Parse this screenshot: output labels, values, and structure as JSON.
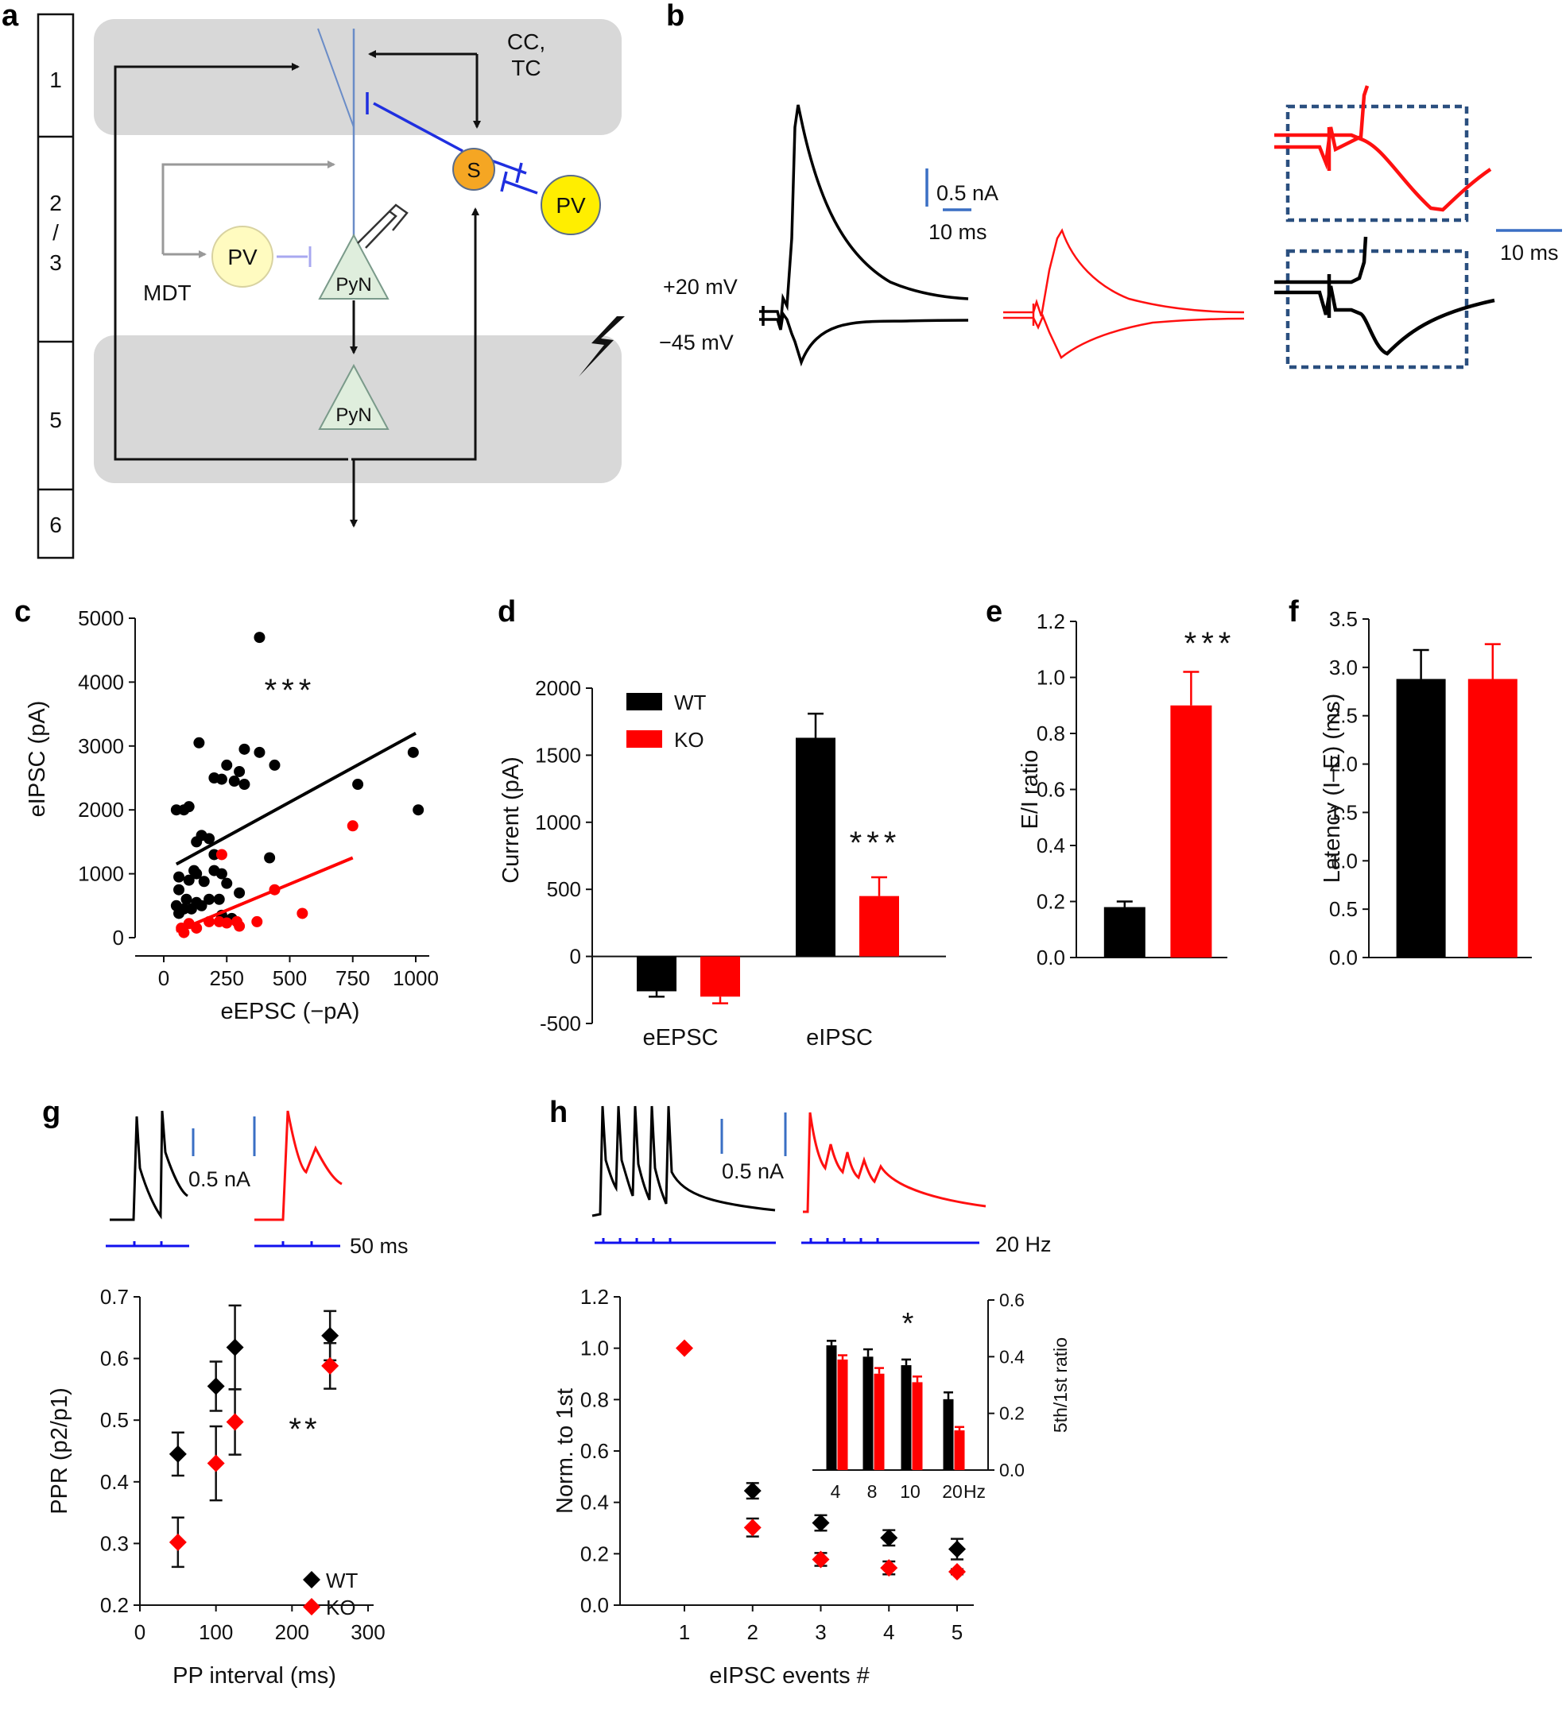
{
  "panels": {
    "a": {
      "label": "a",
      "layers": [
        "1",
        "2",
        "/",
        "3",
        "5",
        "6"
      ],
      "nodes": {
        "s": "S",
        "pv_right": "PV",
        "pv_left": "PV",
        "pyn_upper": "PyN",
        "pyn_lower": "PyN"
      },
      "inputs": {
        "cc": "CC,",
        "tc": "TC",
        "mdt": "MDT"
      },
      "colors": {
        "inhibitory": "#1f2fe0",
        "s_cell": "#f5a623",
        "pv_cell": "#ffee00",
        "pyn": "#dfeedd",
        "layer_shade": "#d8d8d8"
      }
    },
    "b": {
      "label": "b",
      "holding_high": "+20 mV",
      "holding_low": "−45 mV",
      "scale_current": "0.5 nA",
      "scale_time_1": "10 ms",
      "scale_time_2": "10 ms"
    },
    "c": {
      "label": "c"
    },
    "d": {
      "label": "d"
    },
    "e": {
      "label": "e"
    },
    "f": {
      "label": "f"
    },
    "g": {
      "label": "g",
      "scale_current": "0.5 nA",
      "scale_time": "50 ms"
    },
    "h": {
      "label": "h",
      "scale_current": "0.5 nA",
      "stim_rate": "20 Hz"
    }
  },
  "colors": {
    "wt": "#000000",
    "ko": "#ff0000",
    "scale": "#3a6fc4",
    "stim": "#1010ee"
  },
  "chart_data": [
    {
      "panel": "c",
      "type": "scatter",
      "xlabel": "eEPSC (−pA)",
      "ylabel": "eIPSC (pA)",
      "xlim": [
        -100,
        1070
      ],
      "ylim": [
        -150,
        5000
      ],
      "xticks": [
        0,
        250,
        500,
        750,
        1000
      ],
      "yticks": [
        0,
        1000,
        2000,
        3000,
        4000,
        5000
      ],
      "annotation": "***",
      "series": [
        {
          "color": "#000000",
          "points": [
            [
              380,
              4700
            ],
            [
              140,
              3050
            ],
            [
              320,
              2950
            ],
            [
              380,
              2900
            ],
            [
              200,
              2500
            ],
            [
              230,
              2480
            ],
            [
              280,
              2450
            ],
            [
              320,
              2400
            ],
            [
              300,
              2600
            ],
            [
              440,
              2700
            ],
            [
              250,
              2700
            ],
            [
              100,
              2050
            ],
            [
              80,
              2000
            ],
            [
              50,
              2000
            ],
            [
              150,
              1600
            ],
            [
              180,
              1550
            ],
            [
              130,
              1500
            ],
            [
              200,
              1300
            ],
            [
              420,
              1250
            ],
            [
              60,
              950
            ],
            [
              130,
              1000
            ],
            [
              200,
              1050
            ],
            [
              230,
              1000
            ],
            [
              120,
              1050
            ],
            [
              100,
              900
            ],
            [
              160,
              880
            ],
            [
              250,
              850
            ],
            [
              300,
              700
            ],
            [
              60,
              750
            ],
            [
              90,
              600
            ],
            [
              130,
              550
            ],
            [
              150,
              500
            ],
            [
              220,
              600
            ],
            [
              50,
              500
            ],
            [
              180,
              600
            ],
            [
              80,
              450
            ],
            [
              110,
              450
            ],
            [
              60,
              380
            ],
            [
              270,
              300
            ],
            [
              230,
              350
            ],
            [
              770,
              2400
            ],
            [
              990,
              2900
            ],
            [
              1010,
              2000
            ]
          ],
          "fit": [
            [
              50,
              1150
            ],
            [
              1000,
              3200
            ]
          ]
        },
        {
          "color": "#ff0000",
          "points": [
            [
              230,
              1300
            ],
            [
              750,
              1750
            ],
            [
              440,
              750
            ],
            [
              550,
              380
            ],
            [
              370,
              250
            ],
            [
              290,
              250
            ],
            [
              250,
              230
            ],
            [
              220,
              250
            ],
            [
              180,
              250
            ],
            [
              100,
              220
            ],
            [
              70,
              150
            ],
            [
              80,
              80
            ],
            [
              130,
              150
            ],
            [
              300,
              180
            ]
          ],
          "fit": [
            [
              50,
              100
            ],
            [
              750,
              1250
            ]
          ]
        }
      ]
    },
    {
      "panel": "d",
      "type": "bar",
      "ylabel": "Current (pA)",
      "categories": [
        "eEPSC",
        "eIPSC"
      ],
      "ylim": [
        -500,
        2000
      ],
      "yticks": [
        -500,
        0,
        500,
        1000,
        1500,
        2000
      ],
      "series": [
        {
          "name": "WT",
          "color": "#000000",
          "values": [
            -260,
            1630
          ],
          "errors": [
            40,
            180
          ]
        },
        {
          "name": "KO",
          "color": "#ff0000",
          "values": [
            -300,
            450
          ],
          "errors": [
            50,
            140
          ]
        }
      ],
      "annotation": "***",
      "legend": "top-left"
    },
    {
      "panel": "e",
      "type": "bar",
      "ylabel": "E/I ratio",
      "ylim": [
        0,
        1.2
      ],
      "yticks": [
        0.0,
        0.2,
        0.4,
        0.6,
        0.8,
        1.0,
        1.2
      ],
      "values": [
        0.18,
        0.9
      ],
      "errors": [
        0.02,
        0.12
      ],
      "colors": [
        "#000000",
        "#ff0000"
      ],
      "annotation": "***"
    },
    {
      "panel": "f",
      "type": "bar",
      "ylabel": "Latency (I–E) (ms)",
      "ylim": [
        0,
        3.5
      ],
      "yticks": [
        0.0,
        0.5,
        1.0,
        1.5,
        2.0,
        2.5,
        3.0,
        3.5
      ],
      "values": [
        2.88,
        2.88
      ],
      "errors": [
        0.3,
        0.36
      ],
      "colors": [
        "#000000",
        "#ff0000"
      ]
    },
    {
      "panel": "g",
      "type": "scatter",
      "xlabel": "PP interval (ms)",
      "ylabel": "PPR (p2/p1)",
      "xlim": [
        0,
        300
      ],
      "ylim": [
        0.2,
        0.7
      ],
      "xticks": [
        0,
        100,
        200,
        300
      ],
      "yticks": [
        0.2,
        0.3,
        0.4,
        0.5,
        0.6,
        0.7
      ],
      "series": [
        {
          "name": "WT",
          "color": "#000000",
          "x": [
            50,
            100,
            125,
            250
          ],
          "y": [
            0.445,
            0.555,
            0.618,
            0.637
          ],
          "errors": [
            0.035,
            0.04,
            0.068,
            0.04
          ]
        },
        {
          "name": "KO",
          "color": "#ff0000",
          "x": [
            50,
            100,
            125,
            250
          ],
          "y": [
            0.302,
            0.43,
            0.497,
            0.588
          ],
          "errors": [
            0.04,
            0.06,
            0.053,
            0.037
          ]
        }
      ],
      "annotation": "**",
      "legend": "bottom-right"
    },
    {
      "panel": "h",
      "type": "scatter",
      "xlabel": "eIPSC events #",
      "ylabel": "Norm. to 1st",
      "xlim": [
        0.5,
        5.5
      ],
      "ylim": [
        0.0,
        1.2
      ],
      "xticks": [
        1,
        2,
        3,
        4,
        5
      ],
      "yticks": [
        0.0,
        0.2,
        0.4,
        0.6,
        0.8,
        1.0,
        1.2
      ],
      "series": [
        {
          "color": "#000000",
          "x": [
            2,
            3,
            4,
            5
          ],
          "y": [
            0.445,
            0.32,
            0.262,
            0.218
          ],
          "errors": [
            0.03,
            0.03,
            0.03,
            0.04
          ]
        },
        {
          "color": "#ff0000",
          "x": [
            1,
            2,
            3,
            4,
            5
          ],
          "y": [
            1.0,
            0.302,
            0.178,
            0.145,
            0.13
          ],
          "errors": [
            0.0,
            0.035,
            0.025,
            0.025,
            0.01
          ]
        }
      ]
    },
    {
      "panel": "h-inset",
      "type": "bar",
      "ylabel": "5th/1st ratio",
      "categories": [
        "4",
        "8",
        "10",
        "20"
      ],
      "unit": "Hz",
      "ylim": [
        0,
        0.6
      ],
      "yticks": [
        0.0,
        0.2,
        0.4,
        0.6
      ],
      "series": [
        {
          "color": "#000000",
          "values": [
            0.44,
            0.4,
            0.37,
            0.25
          ],
          "errors": [
            0.016,
            0.026,
            0.02,
            0.024
          ]
        },
        {
          "color": "#ff0000",
          "values": [
            0.39,
            0.34,
            0.31,
            0.14
          ],
          "errors": [
            0.015,
            0.02,
            0.02,
            0.012
          ]
        }
      ],
      "annotation": "*"
    }
  ]
}
